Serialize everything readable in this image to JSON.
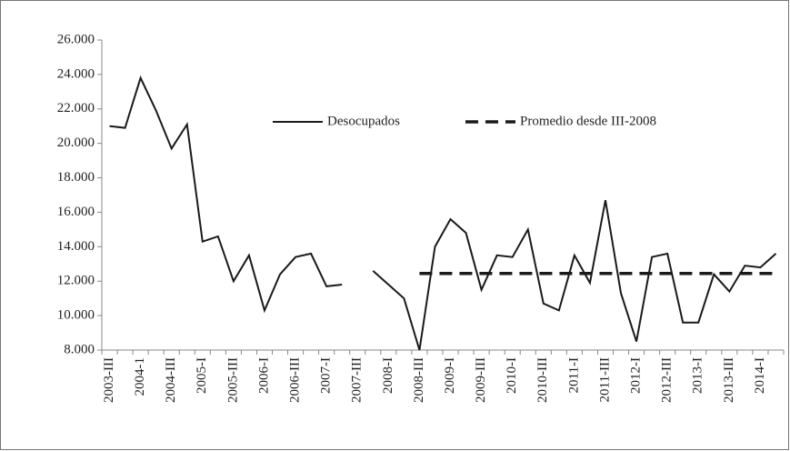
{
  "chart_data": {
    "type": "line",
    "categories": [
      "2003-III",
      null,
      "2004-1",
      null,
      "2004-III",
      null,
      "2005-I",
      null,
      "2005-III",
      null,
      "2006-I",
      null,
      "2006-III",
      null,
      "2007-I",
      null,
      "2007-III",
      null,
      "2008-I",
      null,
      "2008-III",
      null,
      "2009-I",
      null,
      "2009-III",
      null,
      "2010-I",
      null,
      "2010-III",
      null,
      "2011-I",
      null,
      "2011-III",
      null,
      "2012-I",
      null,
      "2012-III",
      null,
      "2013-I",
      null,
      "2013-III",
      null,
      "2014-I",
      null
    ],
    "series": [
      {
        "name": "Desocupados",
        "color": "#1a1a1a",
        "dashed": false,
        "values": [
          21000,
          20900,
          23800,
          21900,
          19700,
          21100,
          14300,
          14600,
          12000,
          13500,
          10300,
          12400,
          13400,
          13600,
          11700,
          11800,
          null,
          12600,
          11800,
          11000,
          8000,
          14000,
          15600,
          14800,
          11500,
          13500,
          13400,
          15000,
          10700,
          10300,
          13500,
          11900,
          16700,
          11300,
          8500,
          13400,
          13600,
          9600,
          9600,
          12400,
          11400,
          12900,
          12800,
          13600
        ]
      },
      {
        "name": "Promedio desde III-2008",
        "color": "#1a1a1a",
        "dashed": true,
        "values": [
          null,
          null,
          null,
          null,
          null,
          null,
          null,
          null,
          null,
          null,
          null,
          null,
          null,
          null,
          null,
          null,
          null,
          null,
          null,
          null,
          12450,
          12450,
          12450,
          12450,
          12450,
          12450,
          12450,
          12450,
          12450,
          12450,
          12450,
          12450,
          12450,
          12450,
          12450,
          12450,
          12450,
          12450,
          12450,
          12450,
          12450,
          12450,
          12450,
          12450
        ]
      }
    ],
    "ylim": [
      8000,
      26000
    ],
    "yticks": [
      {
        "value": 8000,
        "label": "8.000"
      },
      {
        "value": 10000,
        "label": "10.000"
      },
      {
        "value": 12000,
        "label": "12.000"
      },
      {
        "value": 14000,
        "label": "14.000"
      },
      {
        "value": 16000,
        "label": "16.000"
      },
      {
        "value": 18000,
        "label": "18.000"
      },
      {
        "value": 20000,
        "label": "20.000"
      },
      {
        "value": 22000,
        "label": "22.000"
      },
      {
        "value": 24000,
        "label": "24.000"
      },
      {
        "value": 26000,
        "label": "26.000"
      }
    ],
    "grid": false,
    "legend": "top"
  }
}
